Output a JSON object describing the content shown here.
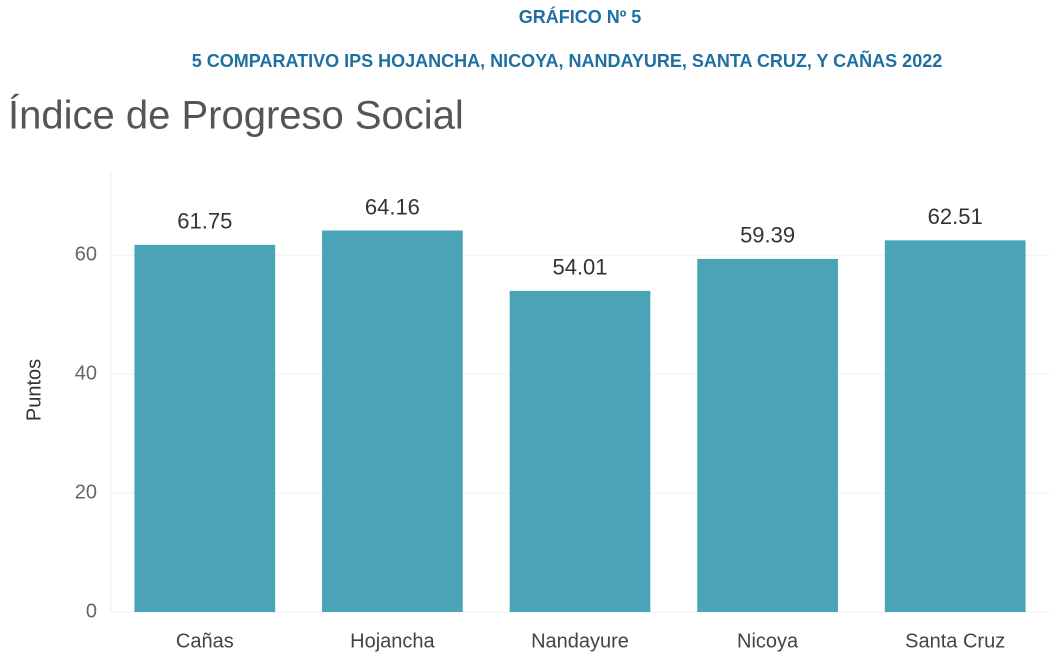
{
  "header": {
    "label": "GRÁFICO Nº 5",
    "caption": "5 COMPARATIVO IPS HOJANCHA, NICOYA, NANDAYURE, SANTA CRUZ, Y CAÑAS 2022"
  },
  "chart_data": {
    "type": "bar",
    "title": "Índice de Progreso Social",
    "y_label": "Puntos",
    "categories": [
      "Cañas",
      "Hojancha",
      "Nandayure",
      "Nicoya",
      "Santa Cruz"
    ],
    "values": [
      61.75,
      64.16,
      54.01,
      59.39,
      62.51
    ],
    "color": "#4ba3b8",
    "ylim": [
      0,
      74
    ],
    "yticks": [
      0,
      20,
      40,
      60
    ],
    "grid": true
  }
}
